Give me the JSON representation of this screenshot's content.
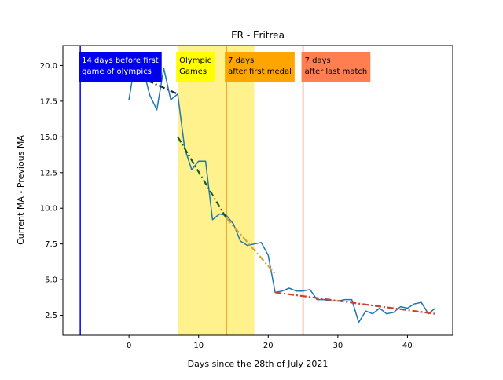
{
  "chart_data": {
    "type": "line",
    "title": "ER - Eritrea",
    "xlabel": "Days since the 28th of July 2021",
    "ylabel": "Current MA - Previous MA",
    "xlim": [
      -9.5,
      46.5
    ],
    "ylim": [
      1.1,
      21.4
    ],
    "xticks": [
      0,
      10,
      20,
      30,
      40
    ],
    "yticks": [
      2.5,
      5.0,
      7.5,
      10.0,
      12.5,
      15.0,
      17.5,
      20.0
    ],
    "grid": false,
    "series": [
      {
        "color": "#1f77b4",
        "x": [
          0,
          1,
          2,
          3,
          4,
          5,
          6,
          7,
          8,
          9,
          10,
          11,
          12,
          13,
          14,
          15,
          16,
          17,
          18,
          19,
          20,
          21,
          22,
          23,
          24,
          25,
          26,
          27,
          28,
          29,
          30,
          31,
          32,
          33,
          34,
          35,
          36,
          37,
          38,
          39,
          40,
          41,
          42,
          43,
          44
        ],
        "y": [
          17.6,
          20.6,
          19.8,
          17.9,
          16.9,
          19.8,
          17.6,
          18.0,
          14.2,
          12.7,
          13.3,
          13.3,
          9.2,
          9.6,
          9.5,
          8.9,
          7.7,
          7.4,
          7.5,
          7.6,
          6.7,
          4.1,
          4.2,
          4.4,
          4.2,
          4.2,
          4.3,
          3.6,
          3.6,
          3.5,
          3.5,
          3.6,
          3.6,
          2.0,
          2.8,
          2.6,
          3.0,
          2.6,
          2.7,
          3.1,
          3.0,
          3.3,
          3.4,
          2.6,
          3.0
        ]
      }
    ],
    "trend_lines": [
      {
        "color": "#1a2a4a",
        "x": [
          1,
          7
        ],
        "y": [
          19.3,
          18.0
        ]
      },
      {
        "color": "#1a5c1a",
        "x": [
          7,
          14
        ],
        "y": [
          15.0,
          9.3
        ]
      },
      {
        "color": "#e0a040",
        "x": [
          14,
          21
        ],
        "y": [
          9.3,
          5.4
        ]
      },
      {
        "color": "#d0402a",
        "x": [
          21,
          44
        ],
        "y": [
          4.1,
          2.6
        ]
      }
    ],
    "vertical_lines": [
      {
        "x": -7,
        "color": "#0000ee"
      },
      {
        "x": 14,
        "color": "#f0a020"
      },
      {
        "x": 25,
        "color": "#f08060"
      }
    ],
    "shaded_regions": [
      {
        "x0": 7,
        "x1": 18,
        "color": "#fff080"
      }
    ],
    "annotations": [
      {
        "x": -7,
        "y": 20.6,
        "lines": [
          "14 days before first",
          " game of olympics"
        ],
        "bg": "#0000ee",
        "fg": "#ffffff"
      },
      {
        "x": 7,
        "y": 20.6,
        "lines": [
          "Olympic",
          "Games"
        ],
        "bg": "#ffff00",
        "fg": "#000000"
      },
      {
        "x": 14,
        "y": 20.6,
        "lines": [
          "7 days",
          "after first medal"
        ],
        "bg": "#ffa500",
        "fg": "#000000"
      },
      {
        "x": 25,
        "y": 20.6,
        "lines": [
          "7 days",
          "after last match"
        ],
        "bg": "#ff7f50",
        "fg": "#000000"
      }
    ]
  }
}
